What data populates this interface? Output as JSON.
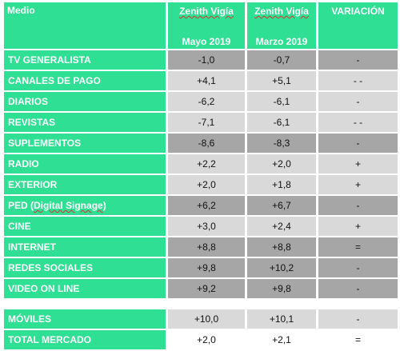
{
  "headers": {
    "medio": "Medio",
    "col1_line1": "Zenith Vigía",
    "col1_line2": "Mayo 2019",
    "col2_line1": "Zenith Vigía",
    "col2_line2": "Marzo 2019",
    "col3": "VARIACIÓN"
  },
  "rows": [
    {
      "name": "TV GENERALISTA",
      "mayo": "-1,0",
      "marzo": "-0,7",
      "var": "-"
    },
    {
      "name": "CANALES DE PAGO",
      "mayo": "+4,1",
      "marzo": "+5,1",
      "var": "- -"
    },
    {
      "name": "DIARIOS",
      "mayo": "-6,2",
      "marzo": "-6,1",
      "var": "-"
    },
    {
      "name": "REVISTAS",
      "mayo": "-7,1",
      "marzo": "-6,1",
      "var": "- -"
    },
    {
      "name": "SUPLEMENTOS",
      "mayo": "-8,6",
      "marzo": "-8,3",
      "var": "-"
    },
    {
      "name": "RADIO",
      "mayo": "+2,2",
      "marzo": "+2,0",
      "var": "+"
    },
    {
      "name": "EXTERIOR",
      "mayo": "+2,0",
      "marzo": "+1,8",
      "var": "+"
    },
    {
      "name": "PED (Digital Signage)",
      "mayo": "+6,2",
      "marzo": "+6,7",
      "var": "-"
    },
    {
      "name": "CINE",
      "mayo": "+3,0",
      "marzo": "+2,4",
      "var": "+"
    },
    {
      "name": "INTERNET",
      "mayo": "+8,8",
      "marzo": "+8,8",
      "var": "="
    },
    {
      "name": "REDES SOCIALES",
      "mayo": "+9,8",
      "marzo": "+10,2",
      "var": "-"
    },
    {
      "name": "VIDEO ON LINE",
      "mayo": "+9,2",
      "marzo": "+9,8",
      "var": "-"
    }
  ],
  "footer_rows": [
    {
      "name": "MÓVILES",
      "mayo": "+10,0",
      "marzo": "+10,1",
      "var": "-"
    },
    {
      "name": "TOTAL MERCADO",
      "mayo": "+2,0",
      "marzo": "+2,1",
      "var": "="
    }
  ],
  "colors": {
    "header_green": "#2fdf93",
    "cell_light_gray": "#d9d9d9",
    "cell_dark_gray": "#a6a6a6"
  }
}
